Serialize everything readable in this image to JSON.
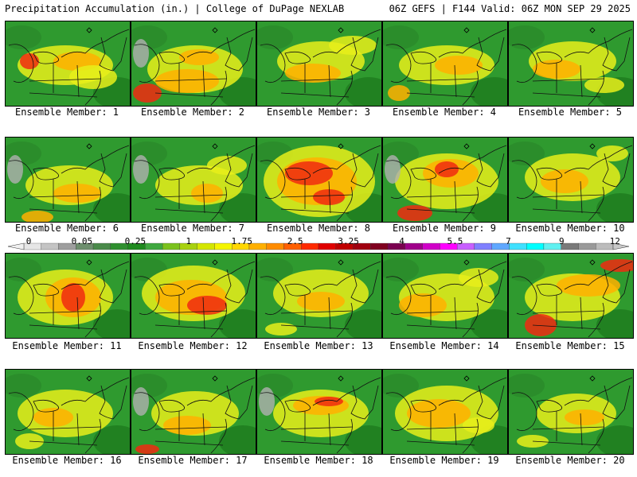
{
  "header": {
    "title_left": "Precipitation Accumulation (in.) | College of DuPage NEXLAB",
    "title_right": "06Z GEFS | F144 Valid: 06Z MON SEP 29 2025"
  },
  "panels": [
    {
      "caption": "Ensemble Member: 1"
    },
    {
      "caption": "Ensemble Member: 2"
    },
    {
      "caption": "Ensemble Member: 3"
    },
    {
      "caption": "Ensemble Member: 4"
    },
    {
      "caption": "Ensemble Member: 5"
    },
    {
      "caption": "Ensemble Member: 6"
    },
    {
      "caption": "Ensemble Member: 7"
    },
    {
      "caption": "Ensemble Member: 8"
    },
    {
      "caption": "Ensemble Member: 9"
    },
    {
      "caption": "Ensemble Member: 10"
    },
    {
      "caption": "Ensemble Member: 11"
    },
    {
      "caption": "Ensemble Member: 12"
    },
    {
      "caption": "Ensemble Member: 13"
    },
    {
      "caption": "Ensemble Member: 14"
    },
    {
      "caption": "Ensemble Member: 15"
    },
    {
      "caption": "Ensemble Member: 16"
    },
    {
      "caption": "Ensemble Member: 17"
    },
    {
      "caption": "Ensemble Member: 18"
    },
    {
      "caption": "Ensemble Member: 19"
    },
    {
      "caption": "Ensemble Member: 20"
    }
  ],
  "colorbar": {
    "labels": [
      "0",
      "0.05",
      "0.25",
      "1",
      "1.75",
      "2.5",
      "3.25",
      "4",
      "5.5",
      "7",
      "9",
      "12"
    ],
    "colors": [
      "#e6e6e6",
      "#c4c4c4",
      "#9e9e9e",
      "#6e8f6e",
      "#4a8a4a",
      "#2f8f2f",
      "#1e8a1e",
      "#3fa83f",
      "#7bc21d",
      "#a8d10f",
      "#d4e600",
      "#f5f500",
      "#ffd700",
      "#ffb000",
      "#ff8c00",
      "#ff6000",
      "#ff2a00",
      "#e00000",
      "#c00000",
      "#a00010",
      "#800020",
      "#7a0050",
      "#a0008a",
      "#d000c8",
      "#ff00ff",
      "#c860ff",
      "#8080ff",
      "#60a8ff",
      "#40e0ff",
      "#00ffff",
      "#60f0f0",
      "#7a7a7a",
      "#9a9a9a",
      "#bcbcbc"
    ]
  }
}
